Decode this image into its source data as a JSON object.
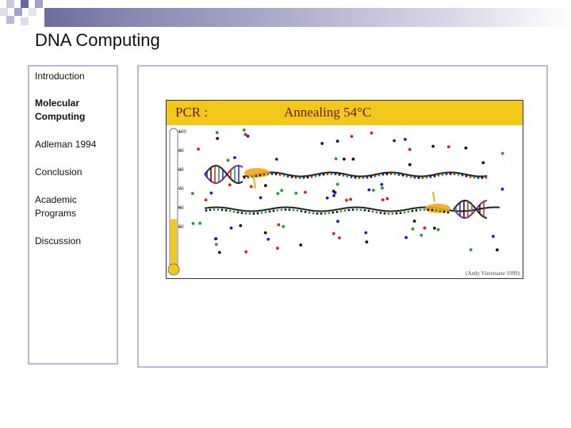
{
  "slide": {
    "title": "DNA Computing"
  },
  "nav": {
    "items": [
      {
        "label": "Introduction",
        "active": false
      },
      {
        "label": "Molecular Computing",
        "active": true
      },
      {
        "label": "Adleman 1994",
        "active": false
      },
      {
        "label": "Conclusion",
        "active": false
      },
      {
        "label": "Academic Programs",
        "active": false
      },
      {
        "label": "Discussion",
        "active": false
      }
    ]
  },
  "figure": {
    "label_left": "PCR :",
    "label_right": "Annealing 54°C",
    "credit": "(Andy Vierstraete 1999)",
    "thermometer_ticks": [
      "100",
      "90",
      "80",
      "70",
      "60",
      "50"
    ],
    "thermometer_level_c": 54
  },
  "colors": {
    "accent_border": "#b9b9df",
    "banner": "#f4c81b",
    "primer": "#f2a81d",
    "nucleotide_colors": [
      "#d62020",
      "#1f9e1f",
      "#1c1cc8",
      "#111111"
    ]
  }
}
